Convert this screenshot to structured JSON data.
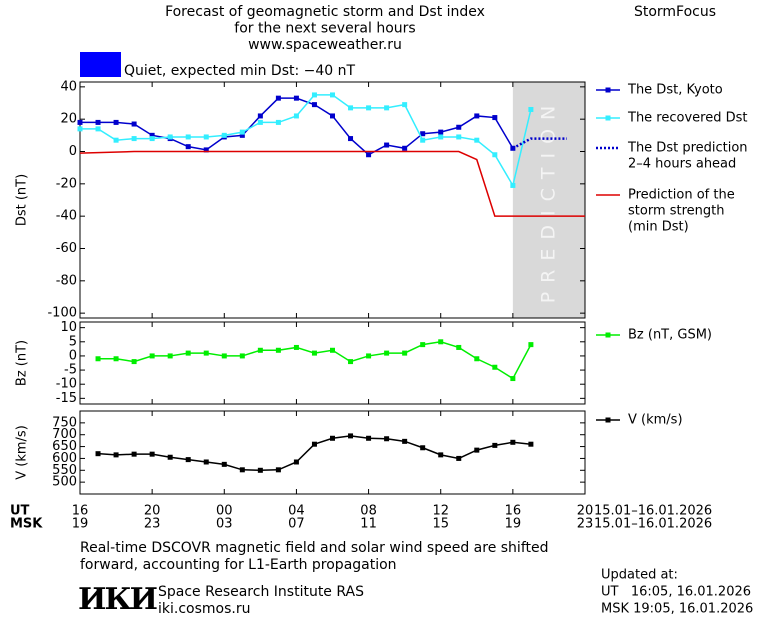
{
  "header": {
    "title_lines": [
      "Forecast of geomagnetic storm and Dst index",
      "for the next several hours",
      "www.spaceweather.ru"
    ],
    "brand": "StormFocus",
    "status": {
      "color": "#0000ff",
      "text": "Quiet, expected min Dst: −40 nT"
    }
  },
  "x_axis": {
    "xlim": [
      0,
      28
    ],
    "ut_label": "UT",
    "msk_label": "MSK",
    "ut_ticks": [
      {
        "value": 0,
        "label": "16"
      },
      {
        "value": 4,
        "label": "20"
      },
      {
        "value": 8,
        "label": "00"
      },
      {
        "value": 12,
        "label": "04"
      },
      {
        "value": 16,
        "label": "08"
      },
      {
        "value": 20,
        "label": "12"
      },
      {
        "value": 24,
        "label": "16"
      },
      {
        "value": 28,
        "label": "20"
      }
    ],
    "msk_ticks": [
      {
        "value": 0,
        "label": "19"
      },
      {
        "value": 4,
        "label": "23"
      },
      {
        "value": 8,
        "label": "03"
      },
      {
        "value": 12,
        "label": "07"
      },
      {
        "value": 16,
        "label": "11"
      },
      {
        "value": 20,
        "label": "15"
      },
      {
        "value": 24,
        "label": "19"
      },
      {
        "value": 28,
        "label": "23"
      }
    ],
    "ut_range": "15.01–16.01.2026",
    "msk_range": "15.01–16.01.2026"
  },
  "chart_data": [
    {
      "type": "line",
      "ylabel": "Dst (nT)",
      "ylim": [
        -103,
        43
      ],
      "yticks": [
        -100,
        -80,
        -60,
        -40,
        -20,
        0,
        20,
        40
      ],
      "legend": "right",
      "prediction": {
        "xlim": [
          24,
          28
        ],
        "label": "PREDICTION",
        "color": "#d9d9d9"
      },
      "series": [
        {
          "name": [
            "The Dst, Kyoto"
          ],
          "color": "#0000cc",
          "marker": true,
          "dash": false,
          "x": [
            0,
            1,
            2,
            3,
            4,
            5,
            6,
            7,
            8,
            9,
            10,
            11,
            12,
            13,
            14,
            15,
            16,
            17,
            18,
            19,
            20,
            21,
            22,
            23,
            24
          ],
          "values": [
            18,
            18,
            18,
            17,
            10,
            8,
            3,
            1,
            9,
            10,
            22,
            33,
            33,
            29,
            22,
            8,
            -2,
            4,
            2,
            11,
            12,
            15,
            22,
            21,
            2
          ]
        },
        {
          "name": [
            "The recovered Dst"
          ],
          "color": "#33eeff",
          "marker": true,
          "dash": false,
          "x": [
            0,
            1,
            2,
            3,
            4,
            5,
            6,
            7,
            8,
            9,
            10,
            11,
            12,
            13,
            14,
            15,
            16,
            17,
            18,
            19,
            20,
            21,
            22,
            23,
            24,
            25
          ],
          "values": [
            14,
            14,
            7,
            8,
            8,
            9,
            9,
            9,
            10,
            12,
            18,
            18,
            22,
            35,
            35,
            27,
            27,
            27,
            29,
            7,
            9,
            9,
            7,
            -2,
            -21,
            26
          ]
        },
        {
          "name": [
            "The Dst prediction",
            "2–4 hours ahead"
          ],
          "color": "#0000cc",
          "marker": false,
          "dash": true,
          "x": [
            24,
            25,
            26,
            27
          ],
          "values": [
            2,
            8,
            8,
            8
          ]
        },
        {
          "name": [
            "Prediction of the",
            "storm strength",
            "(min Dst)"
          ],
          "color": "#dd0000",
          "marker": false,
          "dash": false,
          "x": [
            0,
            3,
            21,
            22,
            23,
            28
          ],
          "values": [
            -1,
            0,
            0,
            -5,
            -40,
            -40
          ]
        }
      ]
    },
    {
      "type": "line",
      "ylabel": "Bz (nT)",
      "ylim": [
        -17,
        12
      ],
      "yticks": [
        -15,
        -10,
        -5,
        0,
        5,
        10
      ],
      "legend": "right",
      "series": [
        {
          "name": [
            "Bz (nT, GSM)"
          ],
          "color": "#00ee00",
          "marker": true,
          "dash": false,
          "x": [
            1,
            2,
            3,
            4,
            5,
            6,
            7,
            8,
            9,
            10,
            11,
            12,
            13,
            14,
            15,
            16,
            17,
            18,
            19,
            20,
            21,
            22,
            23,
            24,
            25
          ],
          "values": [
            -1,
            -1,
            -2,
            0,
            0,
            1,
            1,
            0,
            0,
            2,
            2,
            3,
            1,
            2,
            -2,
            0,
            1,
            1,
            4,
            5,
            3,
            -1,
            -4,
            -8,
            4
          ]
        }
      ]
    },
    {
      "type": "line",
      "ylabel": "V (km/s)",
      "ylim": [
        450,
        800
      ],
      "yticks": [
        500,
        550,
        600,
        650,
        700,
        750
      ],
      "legend": "right",
      "series": [
        {
          "name": [
            "V (km/s)"
          ],
          "color": "#000000",
          "marker": true,
          "dash": false,
          "x": [
            1,
            2,
            3,
            4,
            5,
            6,
            7,
            8,
            9,
            10,
            11,
            12,
            13,
            14,
            15,
            16,
            17,
            18,
            19,
            20,
            21,
            22,
            23,
            24,
            25
          ],
          "values": [
            620,
            615,
            618,
            618,
            605,
            595,
            585,
            575,
            552,
            550,
            552,
            585,
            660,
            685,
            695,
            685,
            683,
            672,
            645,
            615,
            600,
            635,
            655,
            668,
            660
          ]
        }
      ]
    }
  ],
  "footer": {
    "note_lines": [
      "Real-time DSCOVR magnetic field and solar wind speed are shifted",
      "forward, accounting for L1-Earth propagation"
    ],
    "logo": "ИКИ",
    "institute_lines": [
      "Space Research Institute RAS",
      "iki.cosmos.ru"
    ],
    "updated_lines": [
      "Updated at:",
      "UT   16:05, 16.01.2026",
      "MSK 19:05, 16.01.2026"
    ]
  }
}
